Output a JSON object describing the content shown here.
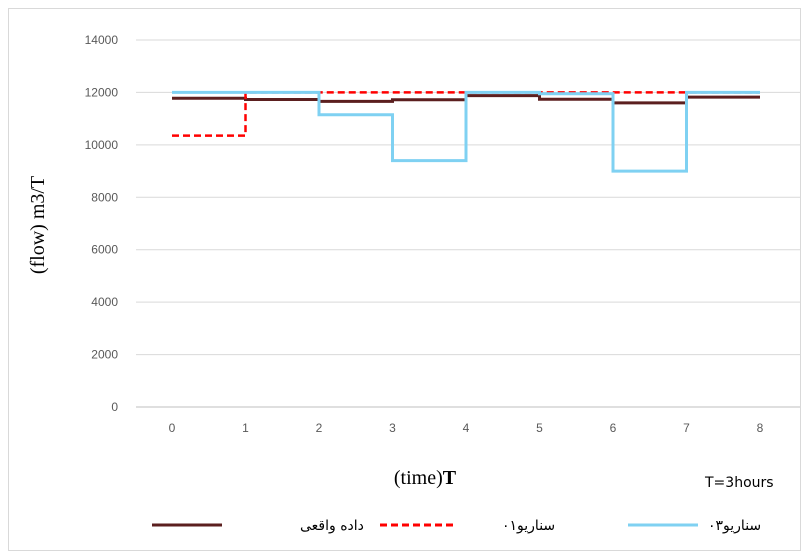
{
  "chart_data": {
    "type": "line",
    "step": true,
    "title": "",
    "xlabel_prefix": "(time)",
    "xlabel_bold": "T",
    "ylabel": "(flow) m3/T",
    "note": "T=3hours",
    "x_ticks": [
      "0",
      "1",
      "2",
      "3",
      "4",
      "5",
      "6",
      "7",
      "8"
    ],
    "y_ticks": [
      "0",
      "2000",
      "4000",
      "6000",
      "8000",
      "10000",
      "12000",
      "14000"
    ],
    "xlim": [
      0,
      8
    ],
    "ylim": [
      0,
      14000
    ],
    "grid": "horizontal",
    "legend_position": "bottom",
    "series": [
      {
        "name": "داده واقعی",
        "color": "#5b1f1f",
        "dash": "solid",
        "segments": [
          {
            "x0": 0,
            "x1": 1,
            "y": 11780
          },
          {
            "x0": 1,
            "x1": 2,
            "y": 11730
          },
          {
            "x0": 2,
            "x1": 3,
            "y": 11660
          },
          {
            "x0": 3,
            "x1": 4,
            "y": 11720
          },
          {
            "x0": 4,
            "x1": 5,
            "y": 11880
          },
          {
            "x0": 5,
            "x1": 6,
            "y": 11740
          },
          {
            "x0": 6,
            "x1": 7,
            "y": 11600
          },
          {
            "x0": 7,
            "x1": 8,
            "y": 11820
          }
        ]
      },
      {
        "name": "سناریو۰۱",
        "color": "#ff0000",
        "dash": "dashed",
        "segments": [
          {
            "x0": 0,
            "x1": 1,
            "y": 10350
          },
          {
            "x0": 1,
            "x1": 2,
            "y": 12000
          },
          {
            "x0": 2,
            "x1": 3,
            "y": 12000
          },
          {
            "x0": 3,
            "x1": 4,
            "y": 12000
          },
          {
            "x0": 4,
            "x1": 5,
            "y": 12000
          },
          {
            "x0": 5,
            "x1": 6,
            "y": 12000
          },
          {
            "x0": 6,
            "x1": 7,
            "y": 12000
          },
          {
            "x0": 7,
            "x1": 8,
            "y": 12000
          }
        ]
      },
      {
        "name": "سناریو۰۳",
        "color": "#7fd1f2",
        "dash": "solid",
        "segments": [
          {
            "x0": 0,
            "x1": 1,
            "y": 12000
          },
          {
            "x0": 1,
            "x1": 2,
            "y": 12000
          },
          {
            "x0": 2,
            "x1": 3,
            "y": 11150
          },
          {
            "x0": 3,
            "x1": 4,
            "y": 9400
          },
          {
            "x0": 4,
            "x1": 5,
            "y": 12000
          },
          {
            "x0": 5,
            "x1": 6,
            "y": 11950
          },
          {
            "x0": 6,
            "x1": 7,
            "y": 9000
          },
          {
            "x0": 7,
            "x1": 8,
            "y": 12000
          }
        ]
      }
    ]
  }
}
